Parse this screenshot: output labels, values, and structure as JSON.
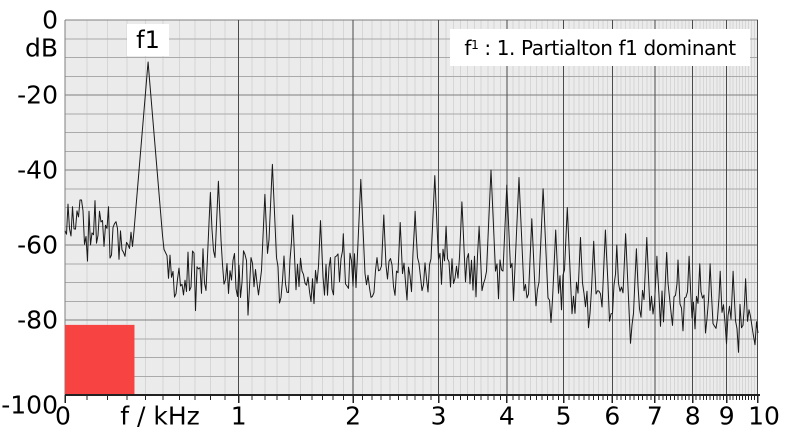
{
  "meta": {
    "description": "Frequency spectrum (level in dB vs frequency in kHz) of a tone whose first partial f1 is dominant"
  },
  "colors": {
    "page_bg": "#ffffff",
    "plot_bg": "#ebebeb",
    "grid_minor_v": "#d6d6d6",
    "grid_major_v": "#4a4a4a",
    "grid_minor_h": "#aaaaaa",
    "grid_major_h": "#7f7f7f",
    "axis_line": "#222222",
    "trace": "#191919",
    "highlight": "#f84343",
    "text": "#000000",
    "label_box_bg": "#ffffff"
  },
  "axes": {
    "y_unit_label": "dB",
    "y_ticks": [
      {
        "label": "0",
        "db": 0
      },
      {
        "label": "-20",
        "db": -20
      },
      {
        "label": "-40",
        "db": -40
      },
      {
        "label": "-60",
        "db": -60
      },
      {
        "label": "-80",
        "db": -80
      },
      {
        "label": "-100",
        "db": -100
      }
    ],
    "x_axis_title": "f / kHz",
    "x_ticks": [
      {
        "label": "0",
        "f": 0
      },
      {
        "label": "1",
        "f": 1
      },
      {
        "label": "2",
        "f": 2
      },
      {
        "label": "3",
        "f": 3
      },
      {
        "label": "4",
        "f": 4
      },
      {
        "label": "5",
        "f": 5
      },
      {
        "label": "6",
        "f": 6
      },
      {
        "label": "7",
        "f": 7
      },
      {
        "label": "8",
        "f": 8
      },
      {
        "label": "9",
        "f": 9
      },
      {
        "label": "10",
        "f": 10
      }
    ]
  },
  "labels": {
    "peak_label": "f1",
    "annotation": {
      "base": "f",
      "sup": "1",
      "rest": " : 1. Partialton f1 dominant"
    }
  },
  "chart_data": {
    "type": "line",
    "title": "",
    "xlabel": "f / kHz",
    "ylabel": "dB",
    "xlim": [
      0,
      10
    ],
    "ylim": [
      -100,
      0
    ],
    "x_scale": "warped log: horizontal position proportional to log10(1 + f_kHz / 1.5)",
    "grid": "minor 0.1 kHz and 5 dB, major 1 kHz and 20 dB",
    "legend_position": "top-right white box",
    "annotation": "f1 : 1. Partialton f1 dominant",
    "peak_label": "f1",
    "fundamental_kHz": 0.415,
    "fundamental_db": -11.2,
    "peaks": [
      [
        0.415,
        -11.2
      ],
      [
        0.8,
        -46
      ],
      [
        0.855,
        -43
      ],
      [
        1.2,
        -46.5
      ],
      [
        1.26,
        -38.5
      ],
      [
        1.43,
        -52
      ],
      [
        1.68,
        -53.5
      ],
      [
        1.9,
        -57
      ],
      [
        2.08,
        -42.5
      ],
      [
        2.33,
        -52
      ],
      [
        2.52,
        -54
      ],
      [
        2.7,
        -51
      ],
      [
        2.95,
        -41.5
      ],
      [
        3.1,
        -55
      ],
      [
        3.32,
        -48.5
      ],
      [
        3.57,
        -55
      ],
      [
        3.75,
        -40
      ],
      [
        4.0,
        -44
      ],
      [
        4.2,
        -42
      ],
      [
        4.42,
        -53
      ],
      [
        4.62,
        -45
      ],
      [
        4.85,
        -56
      ],
      [
        5.07,
        -50
      ],
      [
        5.33,
        -58
      ],
      [
        5.6,
        -59
      ],
      [
        5.85,
        -56
      ],
      [
        6.1,
        -60
      ],
      [
        6.3,
        -57
      ],
      [
        6.55,
        -61
      ],
      [
        6.8,
        -58
      ],
      [
        7.05,
        -63
      ],
      [
        7.3,
        -62
      ],
      [
        7.6,
        -64
      ],
      [
        7.9,
        -63
      ],
      [
        8.2,
        -65
      ],
      [
        8.5,
        -65
      ],
      [
        8.8,
        -67
      ],
      [
        9.2,
        -67
      ],
      [
        9.6,
        -69
      ]
    ],
    "noise_floor": [
      [
        0,
        -52
      ],
      [
        0.12,
        -54
      ],
      [
        0.22,
        -57
      ],
      [
        0.32,
        -61
      ],
      [
        0.42,
        -65
      ],
      [
        0.6,
        -68
      ],
      [
        0.9,
        -67
      ],
      [
        1.2,
        -69
      ],
      [
        1.6,
        -70
      ],
      [
        2.0,
        -68
      ],
      [
        2.5,
        -69
      ],
      [
        3.0,
        -67
      ],
      [
        3.6,
        -69
      ],
      [
        4.2,
        -71
      ],
      [
        4.8,
        -73
      ],
      [
        5.5,
        -75
      ],
      [
        6.5,
        -76
      ],
      [
        7.5,
        -77.5
      ],
      [
        8.5,
        -78.5
      ],
      [
        10,
        -80
      ]
    ],
    "noise_jitter_db": [
      [
        0,
        7
      ],
      [
        0.5,
        7
      ],
      [
        1,
        6.5
      ],
      [
        2,
        6.5
      ],
      [
        4,
        6
      ],
      [
        6,
        5.5
      ],
      [
        10,
        5
      ]
    ],
    "highlight_square": {
      "f_from": 0,
      "f_to": 0.34,
      "db_from": -81.3,
      "db_to": -100,
      "color": "#f84343"
    },
    "seed": 9
  }
}
